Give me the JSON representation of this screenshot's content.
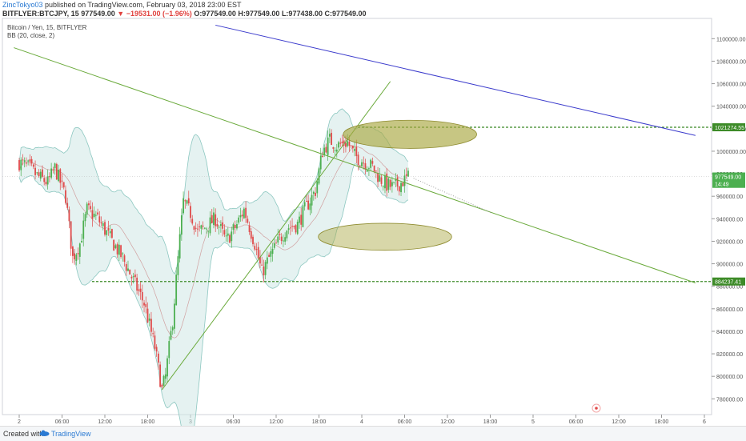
{
  "header": {
    "author": "ZincTokyo03",
    "published": " published on TradingView.com, February 03, 2018 23:00 EST",
    "symbol": "BITFLYER:BTCJPY, 15",
    "price": "977549.00",
    "change": "−19531.00 (−1.96%)",
    "o": "O:977549.00",
    "h": "H:977549.00",
    "l": "L:977438.00",
    "c": "C:977549.00"
  },
  "legend": {
    "line1": "Bitcoin / Yen, 15, BITFLYER",
    "line2": "BB (20, close, 2)"
  },
  "footer": {
    "created_with": "Created with",
    "brand": "TradingView"
  },
  "colors": {
    "up": "#4caf50",
    "down": "#e04a4a",
    "bb_fill": "#cfe8e6",
    "trend": "#6aaa3b",
    "resistance": "#3b3bcc",
    "ellipse": "#a9a740"
  },
  "chart_data": {
    "type": "candlestick",
    "y_axis": {
      "range": [
        766000,
        1118000
      ],
      "ticks": [
        1100000,
        1080000,
        1060000,
        1040000,
        1020000,
        1000000,
        980000,
        960000,
        940000,
        920000,
        900000,
        880000,
        860000,
        840000,
        820000,
        800000,
        780000
      ],
      "tick_labels": [
        "1100000.00",
        "1080000.00",
        "1060000.00",
        "1040000.00",
        "1020000.00",
        "1000000.00",
        "980000.00",
        "960000.00",
        "940000.00",
        "920000.00",
        "900000.00",
        "880000.00",
        "860000.00",
        "840000.00",
        "820000.00",
        "800000.00",
        "780000.00"
      ]
    },
    "x_axis": {
      "tick_labels": [
        "2",
        "06:00",
        "12:00",
        "18:00",
        "3",
        "06:00",
        "12:00",
        "18:00",
        "4",
        "06:00",
        "12:00",
        "18:00",
        "5",
        "06:00",
        "12:00",
        "18:00",
        "6"
      ],
      "bars_per_6h": 24
    },
    "price_badges": [
      {
        "label": "1021274.55",
        "value": 1021274.55,
        "color": "#3d8b28"
      },
      {
        "label": "977549.00",
        "value": 977549,
        "color": "#4caf50"
      },
      {
        "label": "14:49",
        "value": 971000,
        "color": "#4caf50"
      },
      {
        "label": "884237.41",
        "value": 884237.41,
        "color": "#3d8b28"
      }
    ],
    "horizontal_levels": [
      1021274.55,
      884237.41
    ],
    "anchors": [
      [
        0,
        990000
      ],
      [
        6,
        985000
      ],
      [
        10,
        978000
      ],
      [
        16,
        972000
      ],
      [
        20,
        985000
      ],
      [
        26,
        960000
      ],
      [
        30,
        905000
      ],
      [
        34,
        918000
      ],
      [
        38,
        948000
      ],
      [
        44,
        940000
      ],
      [
        50,
        925000
      ],
      [
        58,
        905000
      ],
      [
        64,
        885000
      ],
      [
        70,
        865000
      ],
      [
        76,
        826000
      ],
      [
        80,
        788000
      ],
      [
        82,
        800000
      ],
      [
        86,
        850000
      ],
      [
        90,
        922000
      ],
      [
        92,
        955000
      ],
      [
        96,
        945000
      ],
      [
        100,
        928000
      ],
      [
        104,
        932000
      ],
      [
        110,
        940000
      ],
      [
        116,
        920000
      ],
      [
        122,
        935000
      ],
      [
        126,
        948000
      ],
      [
        132,
        918000
      ],
      [
        136,
        892000
      ],
      [
        140,
        905000
      ],
      [
        146,
        922000
      ],
      [
        150,
        932000
      ],
      [
        156,
        935000
      ],
      [
        160,
        948000
      ],
      [
        166,
        965000
      ],
      [
        170,
        1000000
      ],
      [
        174,
        1010000
      ],
      [
        178,
        1005000
      ],
      [
        184,
        1008000
      ],
      [
        188,
        996000
      ],
      [
        192,
        992000
      ],
      [
        198,
        986000
      ],
      [
        202,
        976000
      ],
      [
        206,
        970000
      ],
      [
        210,
        968000
      ],
      [
        214,
        972000
      ],
      [
        218,
        977000
      ]
    ],
    "trend_lines": [
      {
        "name": "descending support",
        "from": [
          -3,
          1092000
        ],
        "to": [
          379,
          883000
        ]
      },
      {
        "name": "ascending",
        "from": [
          80,
          788000
        ],
        "to": [
          208,
          1062000
        ]
      },
      {
        "name": "resistance",
        "from": [
          110,
          1112000
        ],
        "to": [
          379,
          1014000
        ]
      }
    ],
    "ellipses": [
      {
        "center": [
          219,
          1015000
        ],
        "rx_bars": 17,
        "ry": 12500
      },
      {
        "center": [
          205,
          924000
        ],
        "rx_bars": 17,
        "ry": 12000
      }
    ],
    "dotted_projection": {
      "from": [
        221,
        976000
      ],
      "to": [
        265,
        945000
      ]
    }
  }
}
